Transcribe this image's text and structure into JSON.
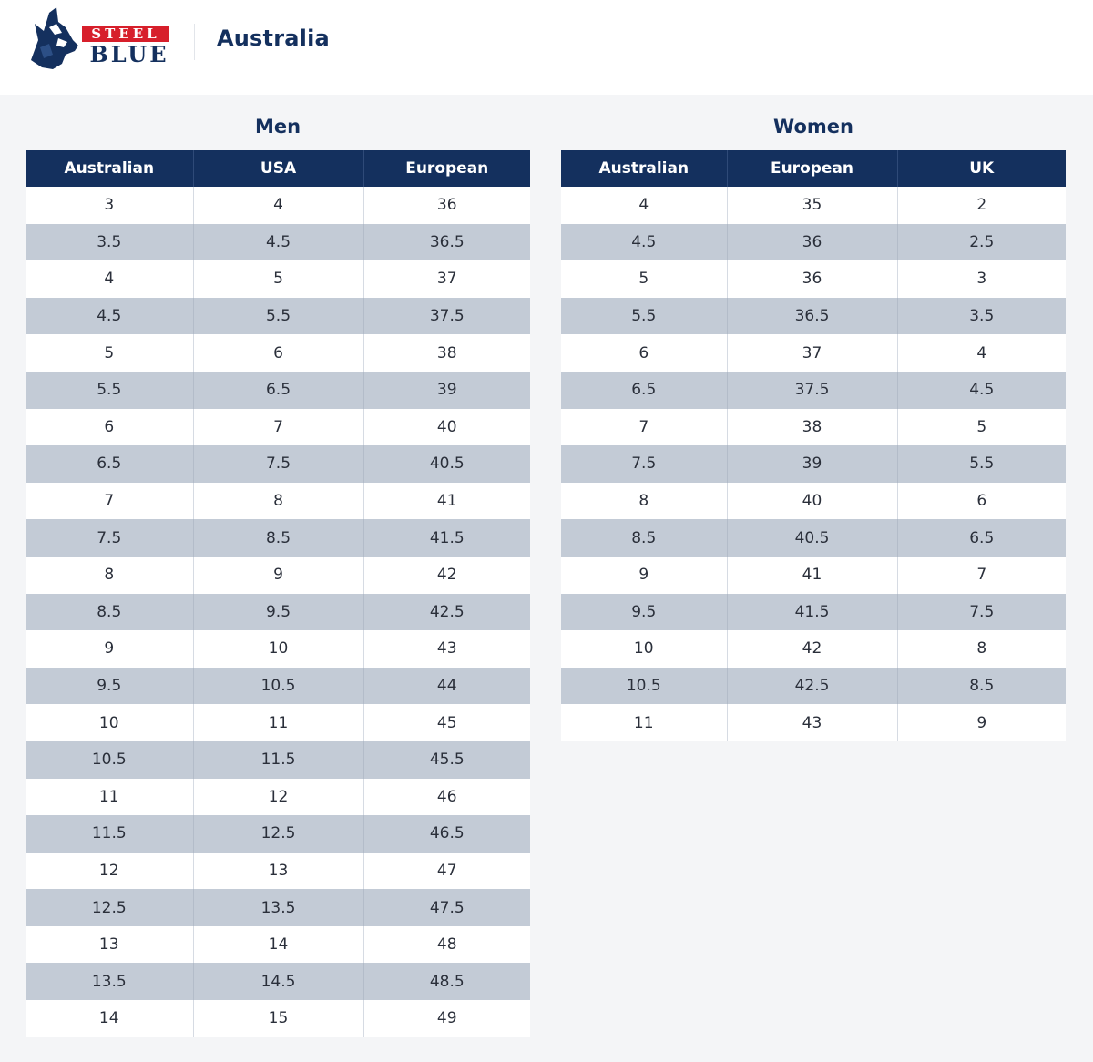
{
  "header": {
    "logo_text_top": "STEEL",
    "logo_text_bottom": "BLUE",
    "region": "Australia"
  },
  "men": {
    "title": "Men",
    "columns": [
      "Australian",
      "USA",
      "European"
    ],
    "rows": [
      [
        "3",
        "4",
        "36"
      ],
      [
        "3.5",
        "4.5",
        "36.5"
      ],
      [
        "4",
        "5",
        "37"
      ],
      [
        "4.5",
        "5.5",
        "37.5"
      ],
      [
        "5",
        "6",
        "38"
      ],
      [
        "5.5",
        "6.5",
        "39"
      ],
      [
        "6",
        "7",
        "40"
      ],
      [
        "6.5",
        "7.5",
        "40.5"
      ],
      [
        "7",
        "8",
        "41"
      ],
      [
        "7.5",
        "8.5",
        "41.5"
      ],
      [
        "8",
        "9",
        "42"
      ],
      [
        "8.5",
        "9.5",
        "42.5"
      ],
      [
        "9",
        "10",
        "43"
      ],
      [
        "9.5",
        "10.5",
        "44"
      ],
      [
        "10",
        "11",
        "45"
      ],
      [
        "10.5",
        "11.5",
        "45.5"
      ],
      [
        "11",
        "12",
        "46"
      ],
      [
        "11.5",
        "12.5",
        "46.5"
      ],
      [
        "12",
        "13",
        "47"
      ],
      [
        "12.5",
        "13.5",
        "47.5"
      ],
      [
        "13",
        "14",
        "48"
      ],
      [
        "13.5",
        "14.5",
        "48.5"
      ],
      [
        "14",
        "15",
        "49"
      ]
    ]
  },
  "women": {
    "title": "Women",
    "columns": [
      "Australian",
      "European",
      "UK"
    ],
    "rows": [
      [
        "4",
        "35",
        "2"
      ],
      [
        "4.5",
        "36",
        "2.5"
      ],
      [
        "5",
        "36",
        "3"
      ],
      [
        "5.5",
        "36.5",
        "3.5"
      ],
      [
        "6",
        "37",
        "4"
      ],
      [
        "6.5",
        "37.5",
        "4.5"
      ],
      [
        "7",
        "38",
        "5"
      ],
      [
        "7.5",
        "39",
        "5.5"
      ],
      [
        "8",
        "40",
        "6"
      ],
      [
        "8.5",
        "40.5",
        "6.5"
      ],
      [
        "9",
        "41",
        "7"
      ],
      [
        "9.5",
        "41.5",
        "7.5"
      ],
      [
        "10",
        "42",
        "8"
      ],
      [
        "10.5",
        "42.5",
        "8.5"
      ],
      [
        "11",
        "43",
        "9"
      ]
    ]
  },
  "colors": {
    "brand_navy": "#14305e",
    "brand_red": "#d71f2b",
    "stripe": "#c3cbd6"
  }
}
